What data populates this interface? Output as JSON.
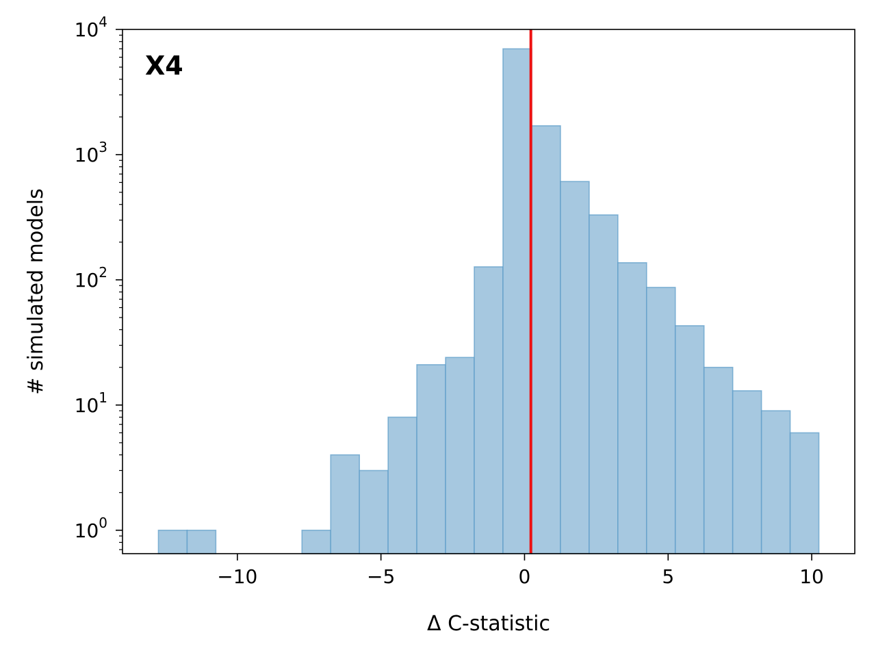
{
  "chart_data": {
    "type": "bar",
    "panel_label": "X4",
    "xlabel": "Δ C-statistic",
    "ylabel": "# simulated models",
    "yscale": "log",
    "xlim": [
      -14.0,
      11.5
    ],
    "ylim": [
      0.65,
      10000
    ],
    "xticks": [
      -10,
      -5,
      0,
      5,
      10
    ],
    "xtick_labels": [
      "−10",
      "−5",
      "0",
      "5",
      "10"
    ],
    "yticks": [
      {
        "value": 1,
        "base": "10",
        "exp": "0"
      },
      {
        "value": 10,
        "base": "10",
        "exp": "1"
      },
      {
        "value": 100,
        "base": "10",
        "exp": "2"
      },
      {
        "value": 1000,
        "base": "10",
        "exp": "3"
      },
      {
        "value": 10000,
        "base": "10",
        "exp": "4"
      }
    ],
    "bins": [
      {
        "x0": -12.75,
        "x1": -11.75,
        "count": 1
      },
      {
        "x0": -11.75,
        "x1": -10.75,
        "count": 1
      },
      {
        "x0": -7.75,
        "x1": -6.75,
        "count": 1
      },
      {
        "x0": -6.75,
        "x1": -5.75,
        "count": 4
      },
      {
        "x0": -5.75,
        "x1": -4.75,
        "count": 3
      },
      {
        "x0": -4.75,
        "x1": -3.75,
        "count": 8
      },
      {
        "x0": -3.75,
        "x1": -2.75,
        "count": 21
      },
      {
        "x0": -2.75,
        "x1": -1.75,
        "count": 24
      },
      {
        "x0": -1.75,
        "x1": -0.75,
        "count": 127
      },
      {
        "x0": -0.75,
        "x1": 0.25,
        "count": 7000
      },
      {
        "x0": 0.25,
        "x1": 1.25,
        "count": 1700
      },
      {
        "x0": 1.25,
        "x1": 2.25,
        "count": 610
      },
      {
        "x0": 2.25,
        "x1": 3.25,
        "count": 330
      },
      {
        "x0": 3.25,
        "x1": 4.25,
        "count": 137
      },
      {
        "x0": 4.25,
        "x1": 5.25,
        "count": 87
      },
      {
        "x0": 5.25,
        "x1": 6.25,
        "count": 43
      },
      {
        "x0": 6.25,
        "x1": 7.25,
        "count": 20
      },
      {
        "x0": 7.25,
        "x1": 8.25,
        "count": 13
      },
      {
        "x0": 8.25,
        "x1": 9.25,
        "count": 9
      },
      {
        "x0": 9.25,
        "x1": 10.25,
        "count": 6
      }
    ],
    "reference_line": {
      "x": 0.22,
      "color": "#ee1111"
    },
    "bar_fill": "#a6c8e0",
    "bar_edge": "#5b9bc8",
    "grid": false,
    "legend": false
  }
}
